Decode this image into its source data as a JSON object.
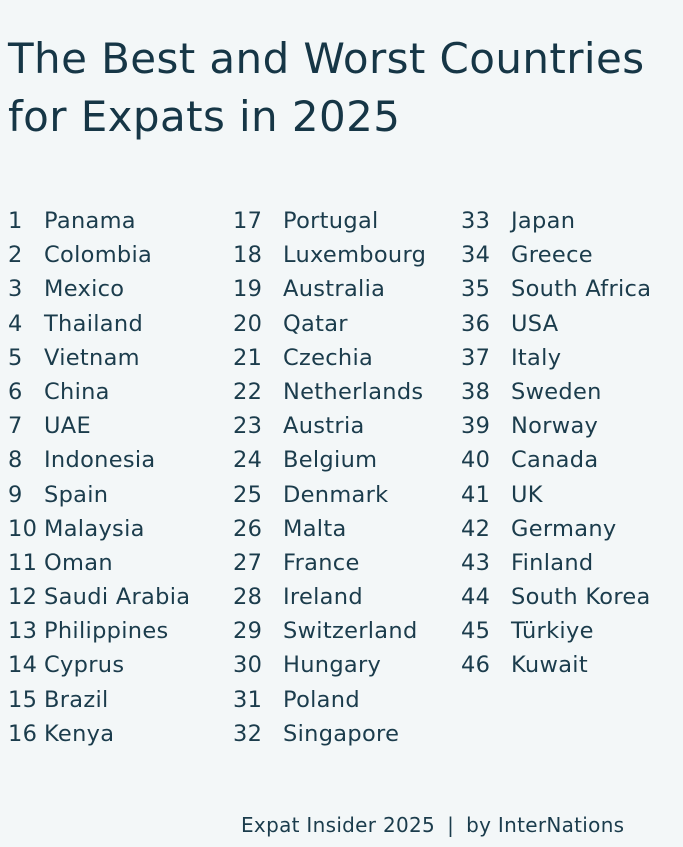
{
  "title_line1": "The Best and Worst Countries",
  "title_line2": "for Expats in 2025",
  "columns": [
    [
      {
        "rank": "1",
        "country": "Panama"
      },
      {
        "rank": "2",
        "country": "Colombia"
      },
      {
        "rank": "3",
        "country": "Mexico"
      },
      {
        "rank": "4",
        "country": "Thailand"
      },
      {
        "rank": "5",
        "country": "Vietnam"
      },
      {
        "rank": "6",
        "country": "China"
      },
      {
        "rank": "7",
        "country": "UAE"
      },
      {
        "rank": "8",
        "country": "Indonesia"
      },
      {
        "rank": "9",
        "country": "Spain"
      },
      {
        "rank": "10",
        "country": "Malaysia"
      },
      {
        "rank": "11",
        "country": "Oman"
      },
      {
        "rank": "12",
        "country": "Saudi Arabia"
      },
      {
        "rank": "13",
        "country": "Philippines"
      },
      {
        "rank": "14",
        "country": "Cyprus"
      },
      {
        "rank": "15",
        "country": "Brazil"
      },
      {
        "rank": "16",
        "country": "Kenya"
      }
    ],
    [
      {
        "rank": "17",
        "country": "Portugal"
      },
      {
        "rank": "18",
        "country": "Luxembourg"
      },
      {
        "rank": "19",
        "country": "Australia"
      },
      {
        "rank": "20",
        "country": "Qatar"
      },
      {
        "rank": "21",
        "country": "Czechia"
      },
      {
        "rank": "22",
        "country": "Netherlands"
      },
      {
        "rank": "23",
        "country": "Austria"
      },
      {
        "rank": "24",
        "country": "Belgium"
      },
      {
        "rank": "25",
        "country": "Denmark"
      },
      {
        "rank": "26",
        "country": "Malta"
      },
      {
        "rank": "27",
        "country": "France"
      },
      {
        "rank": "28",
        "country": "Ireland"
      },
      {
        "rank": "29",
        "country": "Switzerland"
      },
      {
        "rank": "30",
        "country": "Hungary"
      },
      {
        "rank": "31",
        "country": "Poland"
      },
      {
        "rank": "32",
        "country": "Singapore"
      }
    ],
    [
      {
        "rank": "33",
        "country": "Japan"
      },
      {
        "rank": "34",
        "country": "Greece"
      },
      {
        "rank": "35",
        "country": "South Africa"
      },
      {
        "rank": "36",
        "country": "USA"
      },
      {
        "rank": "37",
        "country": "Italy"
      },
      {
        "rank": "38",
        "country": "Sweden"
      },
      {
        "rank": "39",
        "country": "Norway"
      },
      {
        "rank": "40",
        "country": "Canada"
      },
      {
        "rank": "41",
        "country": "UK"
      },
      {
        "rank": "42",
        "country": "Germany"
      },
      {
        "rank": "43",
        "country": "Finland"
      },
      {
        "rank": "44",
        "country": "South Korea"
      },
      {
        "rank": "45",
        "country": "Türkiye"
      },
      {
        "rank": "46",
        "country": "Kuwait"
      }
    ]
  ],
  "footer": {
    "source": "Expat Insider 2025",
    "separator": "|",
    "credit": "by InterNations"
  },
  "colors": {
    "background": "#f3f7f8",
    "text": "#163646"
  }
}
